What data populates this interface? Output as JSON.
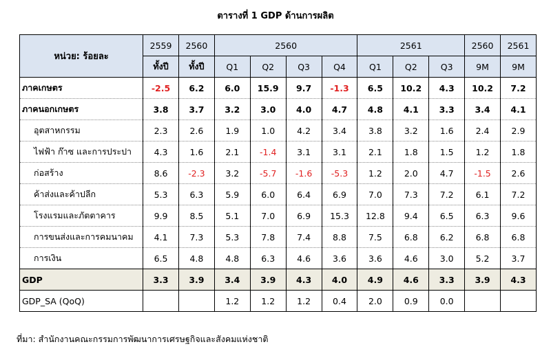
{
  "title": "ตารางที่ 1 GDP ด้านการผลิต",
  "header": {
    "unit_label": "หน่วย: ร้อยละ",
    "row1": [
      "2559",
      "2560",
      "2560",
      "2561",
      "2560",
      "2561"
    ],
    "row2": [
      "ทั้งปี",
      "ทั้งปี",
      "Q1",
      "Q2",
      "Q3",
      "Q4",
      "Q1",
      "Q2",
      "Q3",
      "9M",
      "9M"
    ]
  },
  "rows": [
    {
      "label": "ภาคเกษตร",
      "values": [
        "-2.5",
        "6.2",
        "6.0",
        "15.9",
        "9.7",
        "-1.3",
        "6.5",
        "10.2",
        "4.3",
        "10.2",
        "7.2"
      ]
    },
    {
      "label": "ภาคนอกเกษตร",
      "values": [
        "3.8",
        "3.7",
        "3.2",
        "3.0",
        "4.0",
        "4.7",
        "4.8",
        "4.1",
        "3.3",
        "3.4",
        "4.1"
      ]
    },
    {
      "label": "อุตสาหกรรม",
      "values": [
        "2.3",
        "2.6",
        "1.9",
        "1.0",
        "4.2",
        "3.4",
        "3.8",
        "3.2",
        "1.6",
        "2.4",
        "2.9"
      ]
    },
    {
      "label": "ไฟฟ้า ก๊าซ และการประปา",
      "values": [
        "4.3",
        "1.6",
        "2.1",
        "-1.4",
        "3.1",
        "3.1",
        "2.1",
        "1.8",
        "1.5",
        "1.2",
        "1.8"
      ]
    },
    {
      "label": "ก่อสร้าง",
      "values": [
        "8.6",
        "-2.3",
        "3.2",
        "-5.7",
        "-1.6",
        "-5.3",
        "1.2",
        "2.0",
        "4.7",
        "-1.5",
        "2.6"
      ]
    },
    {
      "label": "ค้าส่งและค้าปลีก",
      "values": [
        "5.3",
        "6.3",
        "5.9",
        "6.0",
        "6.4",
        "6.9",
        "7.0",
        "7.3",
        "7.2",
        "6.1",
        "7.2"
      ]
    },
    {
      "label": "โรงแรมและภัตตาคาร",
      "values": [
        "9.9",
        "8.5",
        "5.1",
        "7.0",
        "6.9",
        "15.3",
        "12.8",
        "9.4",
        "6.5",
        "6.3",
        "9.6"
      ]
    },
    {
      "label": "การขนส่งและการคมนาคม",
      "values": [
        "4.1",
        "7.3",
        "5.3",
        "7.8",
        "7.4",
        "8.8",
        "7.5",
        "6.8",
        "6.2",
        "6.8",
        "6.8"
      ]
    },
    {
      "label": "การเงิน",
      "values": [
        "6.5",
        "4.8",
        "4.8",
        "6.3",
        "4.6",
        "3.6",
        "3.6",
        "4.6",
        "3.0",
        "5.2",
        "3.7"
      ]
    },
    {
      "label": "GDP",
      "values": [
        "3.3",
        "3.9",
        "3.4",
        "3.9",
        "4.3",
        "4.0",
        "4.9",
        "4.6",
        "3.3",
        "3.9",
        "4.3"
      ]
    },
    {
      "label": "GDP_SA (QoQ)",
      "values": [
        "",
        "",
        "1.2",
        "1.2",
        "1.2",
        "0.4",
        "2.0",
        "0.9",
        "0.0",
        "",
        ""
      ]
    }
  ],
  "source": "ที่มา: สำนักงานคณะกรรมการพัฒนาการเศรษฐกิจและสังคมแห่งชาติ",
  "colors": {
    "header_bg": "#dbe4f1",
    "total_bg": "#eeece1",
    "negative": "#e02020"
  }
}
